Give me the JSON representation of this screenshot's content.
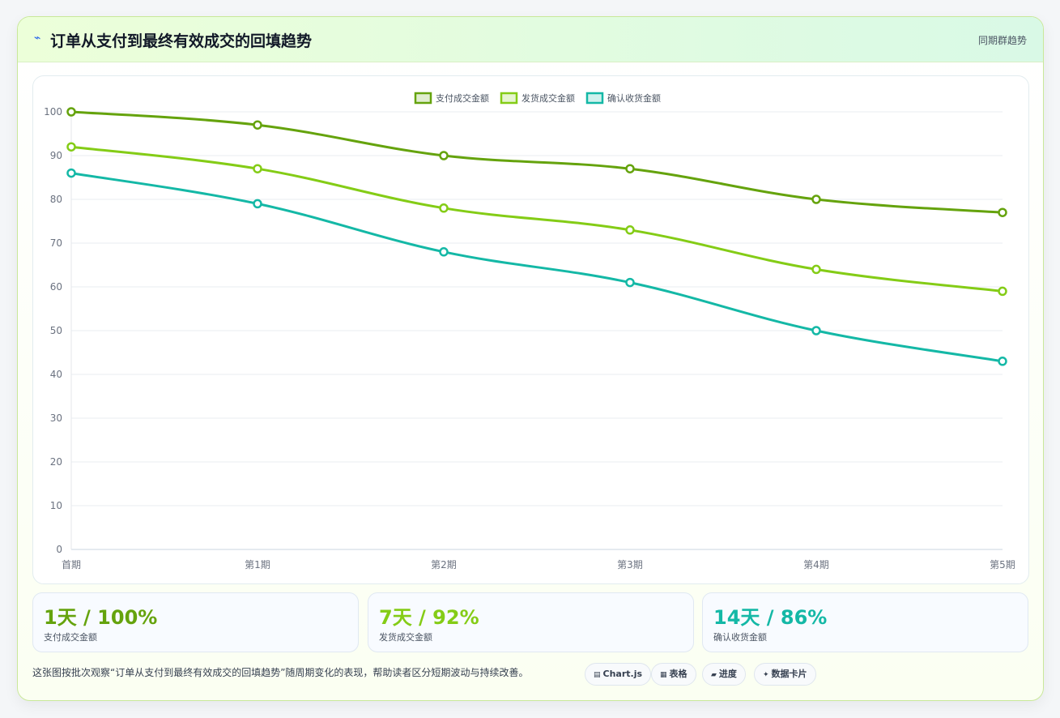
{
  "header": {
    "title": "订单从支付到最终有效成交的回填趋势",
    "badge": "同期群趋势"
  },
  "chart_data": {
    "type": "line",
    "categories": [
      "首期",
      "第1期",
      "第2期",
      "第3期",
      "第4期",
      "第5期"
    ],
    "ylim": [
      0,
      100
    ],
    "yticks": [
      0,
      10,
      20,
      30,
      40,
      50,
      60,
      70,
      80,
      90,
      100
    ],
    "grid": true,
    "legend_position": "top-center",
    "series": [
      {
        "name": "支付成交金额",
        "color": "#65a30d",
        "values": [
          100,
          97,
          90,
          87,
          80,
          77
        ]
      },
      {
        "name": "发货成交金额",
        "color": "#84cc16",
        "values": [
          92,
          87,
          78,
          73,
          64,
          59
        ]
      },
      {
        "name": "确认收货金额",
        "color": "#14b8a6",
        "values": [
          86,
          79,
          68,
          61,
          50,
          43
        ]
      }
    ]
  },
  "stats": [
    {
      "value": "1天 / 100%",
      "label": "支付成交金额",
      "color": "#65a30d"
    },
    {
      "value": "7天 / 92%",
      "label": "发货成交金额",
      "color": "#84cc16"
    },
    {
      "value": "14天 / 86%",
      "label": "确认收货金额",
      "color": "#14b8a6"
    }
  ],
  "footer": {
    "note": "这张图按批次观察“订单从支付到最终有效成交的回填趋势”随周期变化的表现，帮助读者区分短期波动与持续改善。",
    "chips": [
      {
        "icon": "▤",
        "label": "Chart.js"
      },
      {
        "icon": "▦",
        "label": "表格"
      },
      {
        "icon": "▰",
        "label": "进度"
      },
      {
        "icon": "✦",
        "label": "数据卡片"
      }
    ]
  }
}
